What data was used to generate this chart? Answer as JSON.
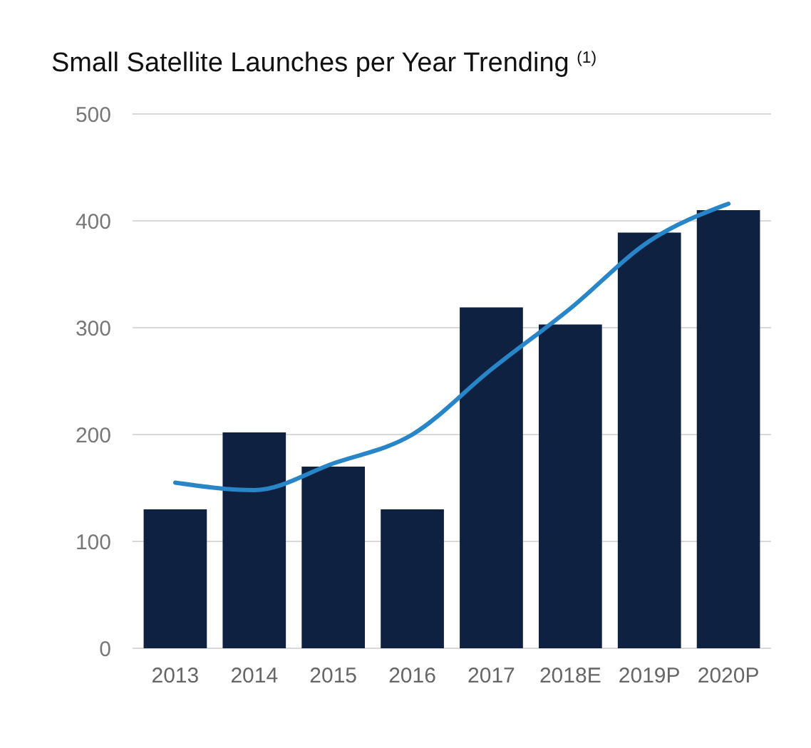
{
  "chart_data": {
    "type": "bar",
    "title": "Small Satellite Launches per Year Trending $^{(1)}$",
    "categories": [
      "2013",
      "2014",
      "2015",
      "2016",
      "2017",
      "2018E",
      "2019P",
      "2020P"
    ],
    "series": [
      {
        "color": "#0e2141",
        "values": [
          130,
          202,
          170,
          130,
          319,
          303,
          389,
          410
        ]
      },
      {
        "type": "line",
        "color": "#2785c8",
        "values": [
          155,
          148,
          173,
          200,
          261,
          318,
          381,
          416
        ]
      }
    ],
    "ylim": [
      0,
      500
    ],
    "yticks": [
      0,
      100,
      200,
      300,
      400,
      500
    ],
    "grid": "y"
  }
}
